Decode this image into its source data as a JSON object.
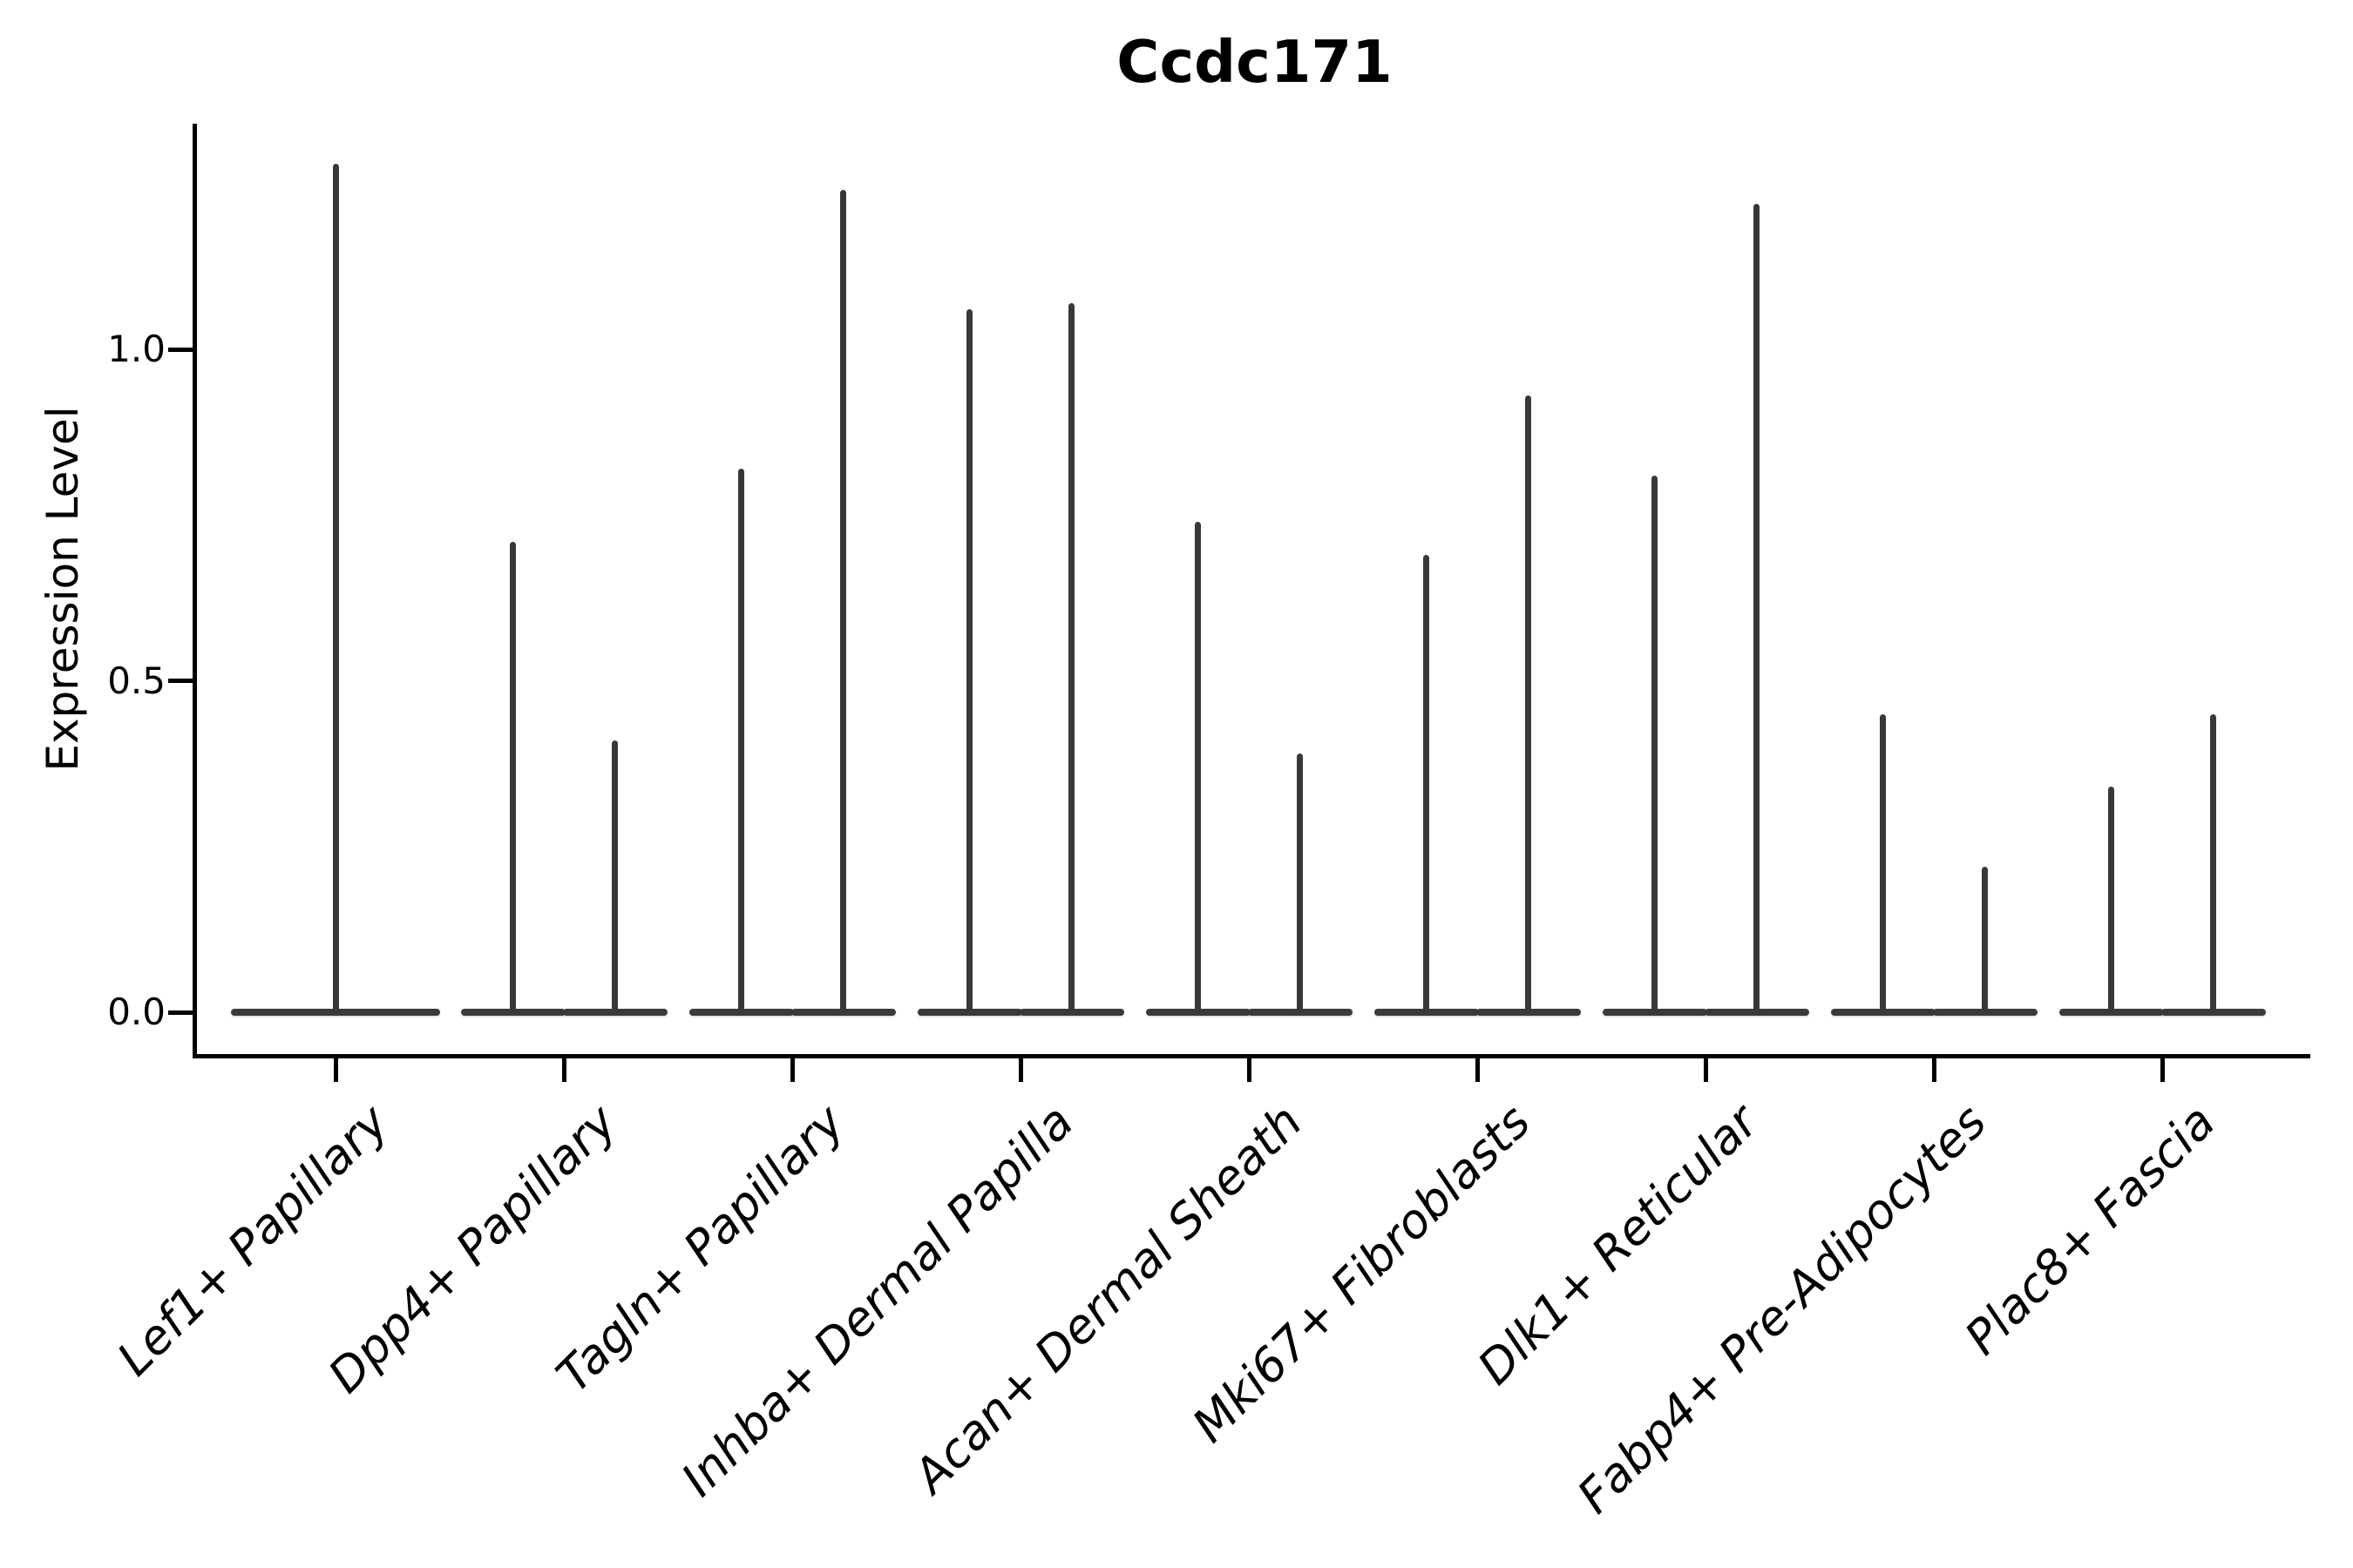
{
  "chart_data": {
    "type": "violin",
    "title": "Ccdc171",
    "xlabel": "",
    "ylabel": "Expression Level",
    "grid": false,
    "legend": null,
    "ylim": [
      -0.06,
      1.34
    ],
    "yticks": [
      {
        "value": 0.0,
        "label": "0.0"
      },
      {
        "value": 0.5,
        "label": "0.5"
      },
      {
        "value": 1.0,
        "label": "1.0"
      }
    ],
    "categories": [
      "Lef1+ Papillary",
      "Dpp4+ Papillary",
      "Tagln+ Papillary",
      "Inhba+ Dermal Papilla",
      "Acan+ Dermal Sheath",
      "Mki67+ Fibroblasts",
      "Dlk1+ Reticular",
      "Fabp4+ Pre-Adipocytes",
      "Plac8+ Fascia"
    ],
    "groups": [
      {
        "category": "Lef1+ Papillary",
        "violins": [
          {
            "peak_expression": 1.28
          }
        ]
      },
      {
        "category": "Dpp4+ Papillary",
        "violins": [
          {
            "peak_expression": 0.71
          },
          {
            "peak_expression": 0.41
          }
        ]
      },
      {
        "category": "Tagln+ Papillary",
        "violins": [
          {
            "peak_expression": 0.82
          },
          {
            "peak_expression": 1.24
          }
        ]
      },
      {
        "category": "Inhba+ Dermal Papilla",
        "violins": [
          {
            "peak_expression": 1.06
          },
          {
            "peak_expression": 1.07
          }
        ]
      },
      {
        "category": "Acan+ Dermal Sheath",
        "violins": [
          {
            "peak_expression": 0.74
          },
          {
            "peak_expression": 0.39
          }
        ]
      },
      {
        "category": "Mki67+ Fibroblasts",
        "violins": [
          {
            "peak_expression": 0.69
          },
          {
            "peak_expression": 0.93
          }
        ]
      },
      {
        "category": "Dlk1+ Reticular",
        "violins": [
          {
            "peak_expression": 0.81
          },
          {
            "peak_expression": 1.22
          }
        ]
      },
      {
        "category": "Fabp4+ Pre-Adipocytes",
        "violins": [
          {
            "peak_expression": 0.45
          },
          {
            "peak_expression": 0.22
          }
        ]
      },
      {
        "category": "Plac8+ Fascia",
        "violins": [
          {
            "peak_expression": 0.34
          },
          {
            "peak_expression": 0.45
          }
        ]
      }
    ],
    "violin_shape_note": "density concentrated at 0: wide flat base at y=0 with thin vertical spike up to peak_expression",
    "style": {
      "violin_color": "#3a3a3a",
      "axis_color": "#000000",
      "background": "#ffffff",
      "x_label_rotation_deg": 45,
      "x_labels_italic": true,
      "title_bold": true
    }
  }
}
